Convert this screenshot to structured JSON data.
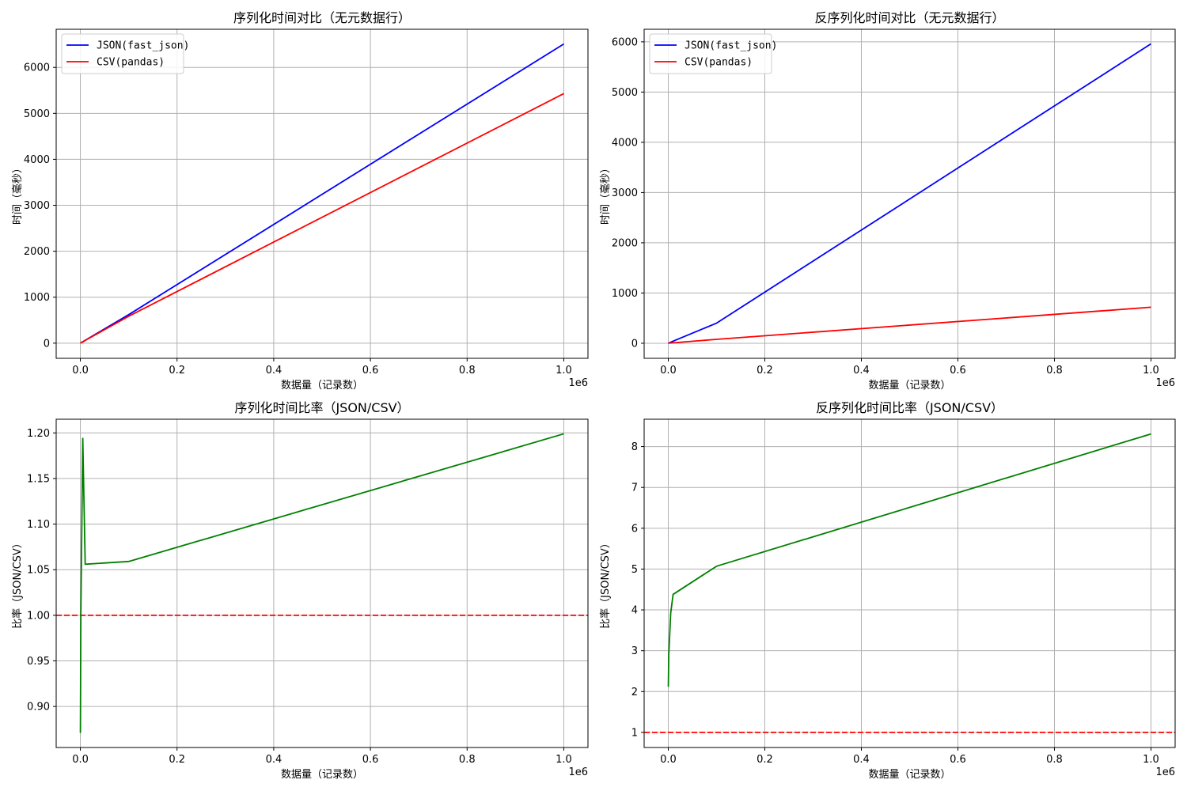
{
  "chart_data": [
    {
      "type": "line",
      "title": "序列化时间对比（无元数据行）",
      "xlabel": "数据量（记录数）",
      "ylabel": "时间（毫秒）",
      "x_offset_label": "1e6",
      "xlim": [
        -50000,
        1050000
      ],
      "ylim": [
        -330,
        6830
      ],
      "xticks": [
        0,
        200000,
        400000,
        600000,
        800000,
        1000000
      ],
      "xtick_labels": [
        "0.0",
        "0.2",
        "0.4",
        "0.6",
        "0.8",
        "1.0"
      ],
      "yticks": [
        0,
        1000,
        2000,
        3000,
        4000,
        5000,
        6000
      ],
      "ytick_labels": [
        "0",
        "1000",
        "2000",
        "3000",
        "4000",
        "5000",
        "6000"
      ],
      "grid": true,
      "legend": "top-left",
      "series": [
        {
          "name": "JSON(fast_json)",
          "color": "#0000ff",
          "x": [
            100,
            1000,
            5000,
            10000,
            100000,
            1000000
          ],
          "values": [
            0.6,
            6,
            31,
            62,
            620,
            6510
          ]
        },
        {
          "name": "CSV(pandas)",
          "color": "#ff0000",
          "x": [
            100,
            1000,
            5000,
            10000,
            100000,
            1000000
          ],
          "values": [
            0.7,
            6,
            26,
            59,
            585,
            5430
          ]
        }
      ],
      "hlines": []
    },
    {
      "type": "line",
      "title": "反序列化时间对比（无元数据行）",
      "xlabel": "数据量（记录数）",
      "ylabel": "时间（毫秒）",
      "x_offset_label": "1e6",
      "xlim": [
        -50000,
        1050000
      ],
      "ylim": [
        -300,
        6250
      ],
      "xticks": [
        0,
        200000,
        400000,
        600000,
        800000,
        1000000
      ],
      "xtick_labels": [
        "0.0",
        "0.2",
        "0.4",
        "0.6",
        "0.8",
        "1.0"
      ],
      "yticks": [
        0,
        1000,
        2000,
        3000,
        4000,
        5000,
        6000
      ],
      "ytick_labels": [
        "0",
        "1000",
        "2000",
        "3000",
        "4000",
        "5000",
        "6000"
      ],
      "grid": true,
      "legend": "top-left",
      "series": [
        {
          "name": "JSON(fast_json)",
          "color": "#0000ff",
          "x": [
            100,
            1000,
            5000,
            10000,
            100000,
            1000000
          ],
          "values": [
            0.4,
            4,
            20,
            42,
            400,
            5960
          ]
        },
        {
          "name": "CSV(pandas)",
          "color": "#ff0000",
          "x": [
            100,
            1000,
            5000,
            10000,
            100000,
            1000000
          ],
          "values": [
            0.2,
            1.4,
            5,
            9.6,
            78,
            717
          ]
        }
      ],
      "hlines": []
    },
    {
      "type": "line",
      "title": "序列化时间比率（JSON/CSV）",
      "xlabel": "数据量（记录数）",
      "ylabel": "比率（JSON/CSV）",
      "x_offset_label": "1e6",
      "xlim": [
        -50000,
        1050000
      ],
      "ylim": [
        0.855,
        1.215
      ],
      "xticks": [
        0,
        200000,
        400000,
        600000,
        800000,
        1000000
      ],
      "xtick_labels": [
        "0.0",
        "0.2",
        "0.4",
        "0.6",
        "0.8",
        "1.0"
      ],
      "yticks": [
        0.9,
        0.95,
        1.0,
        1.05,
        1.1,
        1.15,
        1.2
      ],
      "ytick_labels": [
        "0.90",
        "0.95",
        "1.00",
        "1.05",
        "1.10",
        "1.15",
        "1.20"
      ],
      "grid": true,
      "legend": "",
      "series": [
        {
          "color": "#008000",
          "x": [
            100,
            1000,
            5000,
            10000,
            100000,
            1000000
          ],
          "values": [
            0.871,
            1.0,
            1.194,
            1.056,
            1.059,
            1.199
          ]
        }
      ],
      "hlines": [
        {
          "y": 1.0,
          "color": "#ff0000",
          "style": "dashed"
        }
      ]
    },
    {
      "type": "line",
      "title": "反序列化时间比率（JSON/CSV）",
      "xlabel": "数据量（记录数）",
      "ylabel": "比率（JSON/CSV）",
      "x_offset_label": "1e6",
      "xlim": [
        -50000,
        1050000
      ],
      "ylim": [
        0.63,
        8.67
      ],
      "xticks": [
        0,
        200000,
        400000,
        600000,
        800000,
        1000000
      ],
      "xtick_labels": [
        "0.0",
        "0.2",
        "0.4",
        "0.6",
        "0.8",
        "1.0"
      ],
      "yticks": [
        1,
        2,
        3,
        4,
        5,
        6,
        7,
        8
      ],
      "ytick_labels": [
        "1",
        "2",
        "3",
        "4",
        "5",
        "6",
        "7",
        "8"
      ],
      "grid": true,
      "legend": "",
      "series": [
        {
          "color": "#008000",
          "x": [
            100,
            1000,
            5000,
            10000,
            100000,
            1000000
          ],
          "values": [
            2.12,
            2.9,
            3.92,
            4.38,
            5.07,
            8.31
          ]
        }
      ],
      "hlines": [
        {
          "y": 1.0,
          "color": "#ff0000",
          "style": "dashed"
        }
      ]
    }
  ]
}
